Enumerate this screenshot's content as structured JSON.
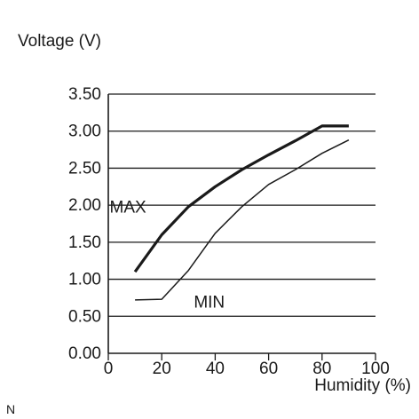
{
  "chart_data": {
    "type": "line",
    "title": "",
    "ylabel": "Voltage (V)",
    "xlabel": "Humidity (%)",
    "xlim": [
      0,
      100
    ],
    "ylim": [
      0,
      3.5
    ],
    "x_ticks": [
      {
        "value": 0,
        "label": "0"
      },
      {
        "value": 20,
        "label": "20"
      },
      {
        "value": 40,
        "label": "40"
      },
      {
        "value": 60,
        "label": "60"
      },
      {
        "value": 80,
        "label": "80"
      },
      {
        "value": 100,
        "label": "100"
      }
    ],
    "y_ticks": [
      {
        "value": 0,
        "label": "0.00"
      },
      {
        "value": 0.5,
        "label": "0.50"
      },
      {
        "value": 1.0,
        "label": "1.00"
      },
      {
        "value": 1.5,
        "label": "1.50"
      },
      {
        "value": 2.0,
        "label": "2.00"
      },
      {
        "value": 2.5,
        "label": "2.50"
      },
      {
        "value": 3.0,
        "label": "3.00"
      },
      {
        "value": 3.5,
        "label": "3.50"
      }
    ],
    "grid": "horizontal",
    "series": [
      {
        "name": "MAX",
        "x": [
          10,
          20,
          30,
          40,
          50,
          60,
          70,
          80,
          90
        ],
        "y": [
          1.1,
          1.6,
          1.98,
          2.25,
          2.48,
          2.68,
          2.87,
          3.07,
          3.07
        ],
        "style": "thick"
      },
      {
        "name": "MIN",
        "x": [
          10,
          20,
          30,
          40,
          50,
          60,
          70,
          80,
          90
        ],
        "y": [
          0.72,
          0.73,
          1.12,
          1.62,
          1.98,
          2.28,
          2.48,
          2.7,
          2.88
        ],
        "style": "thin"
      }
    ],
    "annotations": [
      {
        "text": "MAX",
        "x": 0.5,
        "y": 1.9
      },
      {
        "text": "MIN",
        "x": 32,
        "y": 0.62
      }
    ]
  },
  "corner_label": "N",
  "colors": {
    "line": "#1a1a1a",
    "grid": "#1a1a1a",
    "background": "#ffffff"
  }
}
